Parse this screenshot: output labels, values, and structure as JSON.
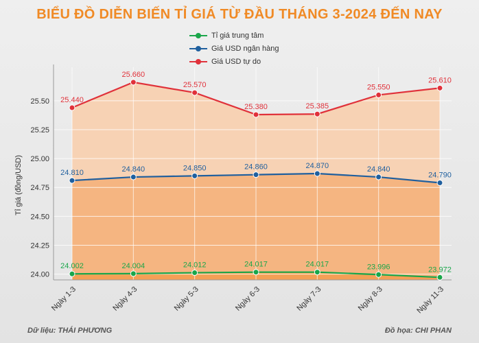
{
  "source_text": "Dữ liệu: THÁI PHƯƠNG",
  "credit_text": "Đồ họa: CHI PHAN",
  "chart_data": {
    "type": "line",
    "title": "BIỂU ĐỒ DIỄN BIẾN TỈ GIÁ TỪ ĐẦU THÁNG 3-2024 ĐẾN NAY",
    "ylabel": "Tỉ giá (đồng/USD)",
    "xlabel": "",
    "categories": [
      "Ngày 1-3",
      "Ngày 4-3",
      "Ngày 5-3",
      "Ngày 6-3",
      "Ngày 7-3",
      "Ngày 8-3",
      "Ngày 11-3"
    ],
    "yticks": [
      24.0,
      24.25,
      24.5,
      24.75,
      25.0,
      25.25,
      25.5
    ],
    "ytick_labels": [
      "24.00",
      "24.25",
      "24.50",
      "24.75",
      "25.00",
      "25.25",
      "25.50"
    ],
    "ylim": [
      23.95,
      25.79
    ],
    "legend_position": "top-center",
    "grid": true,
    "series": [
      {
        "name": "Tỉ giá trung tâm",
        "color": "#1aa64a",
        "values": [
          24.002,
          24.004,
          24.012,
          24.017,
          24.017,
          23.996,
          23.972
        ],
        "labels": [
          "24.002",
          "24.004",
          "24.012",
          "24.017",
          "24.017",
          "23.996",
          "23.972"
        ]
      },
      {
        "name": "Giá USD ngân hàng",
        "color": "#1f5f9e",
        "values": [
          24.81,
          24.84,
          24.85,
          24.86,
          24.87,
          24.84,
          24.79
        ],
        "labels": [
          "24.810",
          "24.840",
          "24.850",
          "24.860",
          "24.870",
          "24.840",
          "24.790"
        ]
      },
      {
        "name": "Giá USD tự do",
        "color": "#e0313a",
        "values": [
          25.44,
          25.66,
          25.57,
          25.38,
          25.385,
          25.55,
          25.61
        ],
        "labels": [
          "25.440",
          "25.660",
          "25.570",
          "25.380",
          "25.385",
          "25.550",
          "25.610"
        ]
      }
    ],
    "fill_colors": {
      "red_area": "#f7d2b4",
      "blue_area": "#f5b581",
      "green_area": "#f4a055"
    }
  }
}
